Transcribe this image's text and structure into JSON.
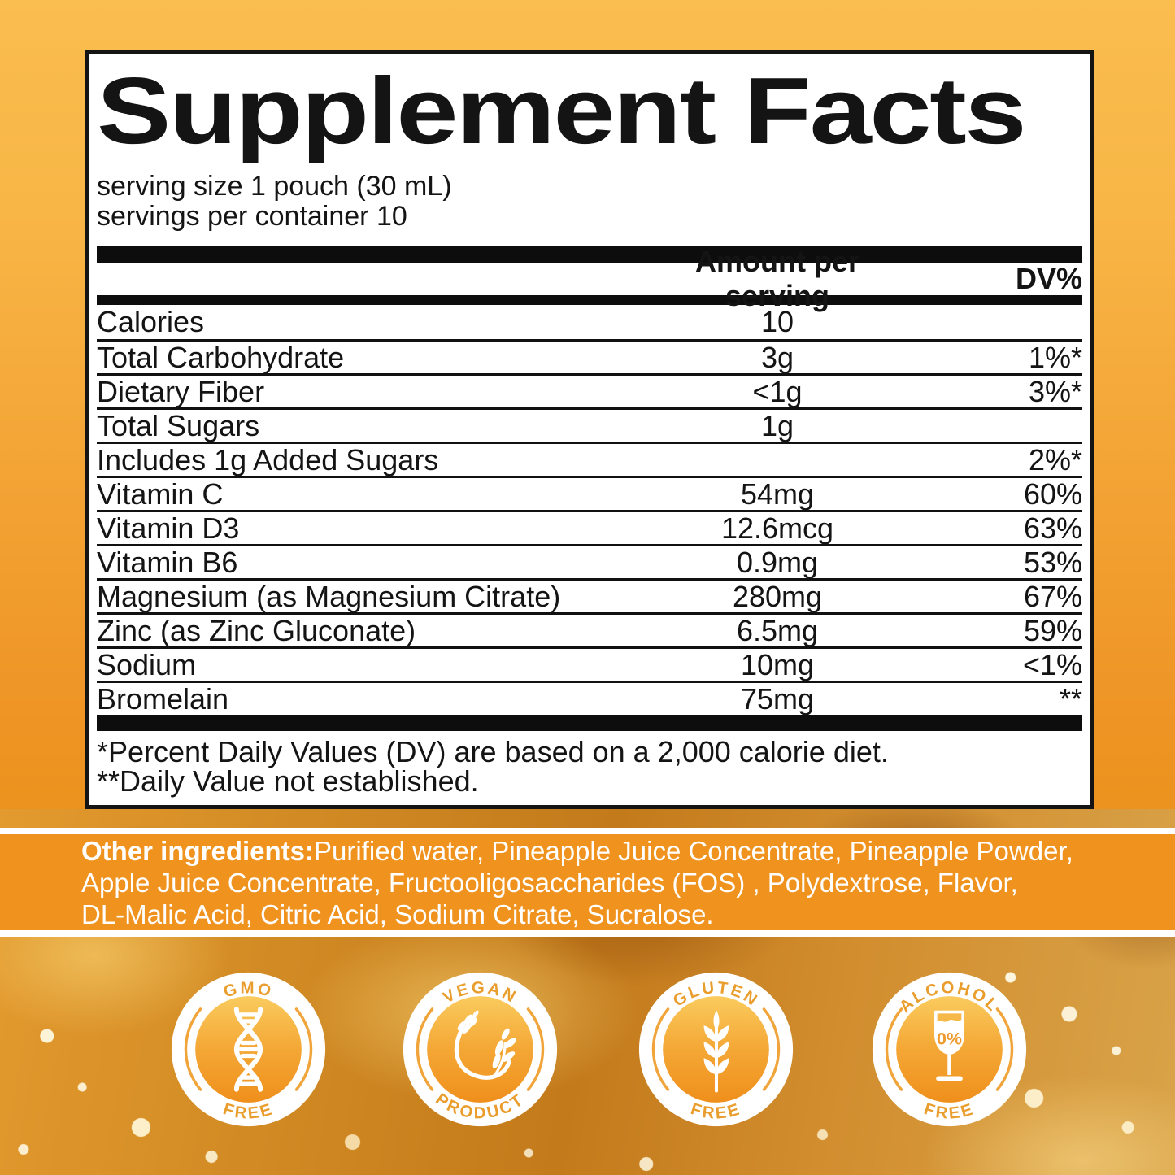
{
  "page": {
    "type": "supplement-facts-label"
  },
  "colors": {
    "background_amber": "#F9BC4D",
    "background_orange": "#EE9026",
    "band_orange": "#F0921E",
    "panel_bg": "#FFFFFF",
    "panel_border": "#141414",
    "text_black": "#141414",
    "text_white": "#FFFFFF",
    "badge_text_orange": "#E99D2C",
    "badge_disc_top": "#FACB5E",
    "badge_disc_bottom": "#EF8F1C"
  },
  "panel": {
    "title": "Supplement Facts",
    "serving_size": "serving size 1 pouch (30 mL)",
    "servings_per_container": "servings per container 10",
    "header": {
      "amount": "Amount per serving",
      "dv": "DV%"
    },
    "rows": [
      {
        "name": "Calories",
        "amount": "10",
        "dv": ""
      },
      {
        "name": "Total Carbohydrate",
        "amount": "3g",
        "dv": "1%*"
      },
      {
        "name": "Dietary Fiber",
        "amount": "<1g",
        "dv": "3%*"
      },
      {
        "name": "Total Sugars",
        "amount": "1g",
        "dv": ""
      },
      {
        "name": "Includes 1g Added Sugars",
        "amount": "",
        "dv": "2%*"
      },
      {
        "name": "Vitamin C",
        "amount": "54mg",
        "dv": "60%"
      },
      {
        "name": "Vitamin D3",
        "amount": "12.6mcg",
        "dv": "63%"
      },
      {
        "name": "Vitamin B6",
        "amount": "0.9mg",
        "dv": "53%"
      },
      {
        "name": "Magnesium (as Magnesium Citrate)",
        "amount": "280mg",
        "dv": "67%"
      },
      {
        "name": "Zinc (as Zinc Gluconate)",
        "amount": "6.5mg",
        "dv": "59%"
      },
      {
        "name": "Sodium",
        "amount": "10mg",
        "dv": "<1%"
      },
      {
        "name": "Bromelain",
        "amount": "75mg",
        "dv": "**"
      }
    ],
    "footnotes": [
      "*Percent Daily Values (DV) are based on a 2,000 calorie diet.",
      "**Daily Value not established."
    ]
  },
  "ingredients": {
    "label": "Other ingredients:",
    "line1_rest": "Purified water, Pineapple Juice Concentrate, Pineapple Powder,",
    "line2": "Apple Juice Concentrate, Fructooligosaccharides (FOS) , Polydextrose, Flavor,",
    "line3": "DL-Malic Acid, Citric Acid, Sodium Citrate, Sucralose."
  },
  "badges": [
    {
      "top": "GMO",
      "bottom": "FREE",
      "icon": "dna-icon"
    },
    {
      "top": "VEGAN",
      "bottom": "PRODUCT",
      "icon": "plant-icon"
    },
    {
      "top": "GLUTEN",
      "bottom": "FREE",
      "icon": "wheat-icon"
    },
    {
      "top": "ALCOHOL",
      "bottom": "FREE",
      "icon": "wine-glass-icon",
      "glass_label": "0%"
    }
  ]
}
